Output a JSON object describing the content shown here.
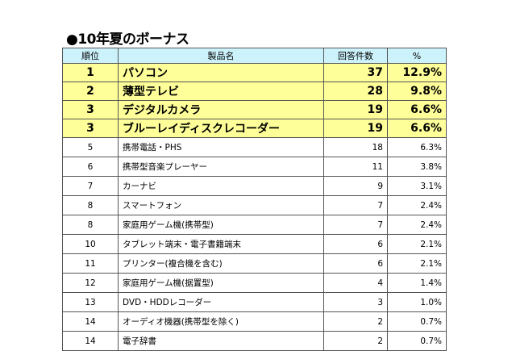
{
  "title": "●10年夏のボーナス",
  "headers": {
    "rank": "順位",
    "product": "製品名",
    "count": "回答件数",
    "percent": "%"
  },
  "highlight_color": "#ffff99",
  "header_color": "#ccf2fb",
  "rows": [
    {
      "rank": "1",
      "product": "パソコン",
      "count": "37",
      "percent": "12.9%"
    },
    {
      "rank": "2",
      "product": "薄型テレビ",
      "count": "28",
      "percent": "9.8%"
    },
    {
      "rank": "3",
      "product": "デジタルカメラ",
      "count": "19",
      "percent": "6.6%"
    },
    {
      "rank": "3",
      "product": "ブルーレイディスクレコーダー",
      "count": "19",
      "percent": "6.6%"
    },
    {
      "rank": "5",
      "product": "携帯電話・PHS",
      "count": "18",
      "percent": "6.3%"
    },
    {
      "rank": "6",
      "product": "携帯型音楽プレーヤー",
      "count": "11",
      "percent": "3.8%"
    },
    {
      "rank": "7",
      "product": "カーナビ",
      "count": "9",
      "percent": "3.1%"
    },
    {
      "rank": "8",
      "product": "スマートフォン",
      "count": "7",
      "percent": "2.4%"
    },
    {
      "rank": "8",
      "product": "家庭用ゲーム機(携帯型)",
      "count": "7",
      "percent": "2.4%"
    },
    {
      "rank": "10",
      "product": "タブレット端末・電子書籍端末",
      "count": "6",
      "percent": "2.1%"
    },
    {
      "rank": "11",
      "product": "プリンター(複合機を含む)",
      "count": "6",
      "percent": "2.1%"
    },
    {
      "rank": "12",
      "product": "家庭用ゲーム機(据置型)",
      "count": "4",
      "percent": "1.4%"
    },
    {
      "rank": "13",
      "product": "DVD・HDDレコーダー",
      "count": "3",
      "percent": "1.0%"
    },
    {
      "rank": "14",
      "product": "オーディオ機器(携帯型を除く)",
      "count": "2",
      "percent": "0.7%"
    },
    {
      "rank": "14",
      "product": "電子辞書",
      "count": "2",
      "percent": "0.7%"
    }
  ]
}
